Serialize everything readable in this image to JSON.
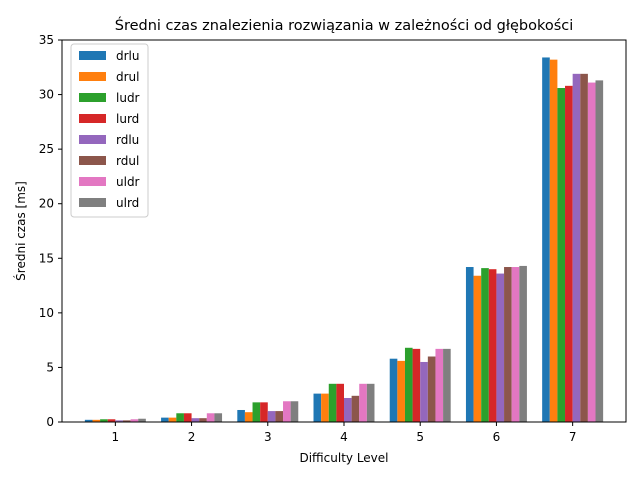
{
  "chart_data": {
    "type": "bar",
    "title": "Średni czas znalezienia rozwiązania w zależności od głębokości",
    "xlabel": "Difficulty Level",
    "ylabel": "Średni czas [ms]",
    "categories": [
      "1",
      "2",
      "3",
      "4",
      "5",
      "6",
      "7"
    ],
    "ylim": [
      0,
      35
    ],
    "yticks": [
      0,
      5,
      10,
      15,
      20,
      25,
      30,
      35
    ],
    "grid": false,
    "legend_position": "top-left",
    "series": [
      {
        "name": "drlu",
        "color": "#1f77b4",
        "values": [
          0.2,
          0.4,
          1.1,
          2.6,
          5.8,
          14.2,
          33.4
        ]
      },
      {
        "name": "drul",
        "color": "#ff7f0e",
        "values": [
          0.2,
          0.4,
          0.9,
          2.6,
          5.6,
          13.4,
          33.2
        ]
      },
      {
        "name": "ludr",
        "color": "#2ca02c",
        "values": [
          0.25,
          0.8,
          1.8,
          3.5,
          6.8,
          14.1,
          30.6
        ]
      },
      {
        "name": "lurd",
        "color": "#d62728",
        "values": [
          0.25,
          0.8,
          1.8,
          3.5,
          6.7,
          14.0,
          30.8
        ]
      },
      {
        "name": "rdlu",
        "color": "#9467bd",
        "values": [
          0.15,
          0.35,
          1.0,
          2.2,
          5.5,
          13.6,
          31.9
        ]
      },
      {
        "name": "rdul",
        "color": "#8c564b",
        "values": [
          0.15,
          0.35,
          1.0,
          2.4,
          6.0,
          14.2,
          31.9
        ]
      },
      {
        "name": "uldr",
        "color": "#e377c2",
        "values": [
          0.25,
          0.8,
          1.9,
          3.5,
          6.7,
          14.2,
          31.1
        ]
      },
      {
        "name": "ulrd",
        "color": "#7f7f7f",
        "values": [
          0.3,
          0.8,
          1.9,
          3.5,
          6.7,
          14.3,
          31.3
        ]
      }
    ]
  }
}
